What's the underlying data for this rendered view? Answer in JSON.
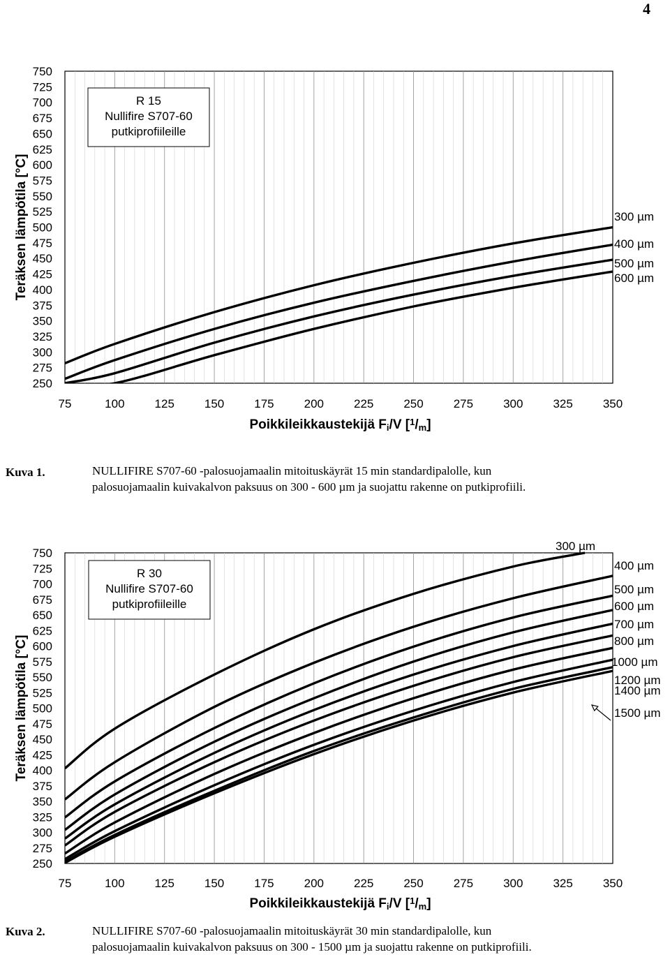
{
  "page_number": "4",
  "chart_data": [
    {
      "type": "line",
      "box_lines": [
        "R 15",
        "Nullifire S707-60",
        "putkiprofiileille"
      ],
      "ylabel": "Teräksen lämpötila [°C]",
      "xlabel_main": "Poikkileikkaustekijä F",
      "xlabel_sub": "i",
      "xlabel_mid": "/V [",
      "xlabel_sup": "1",
      "xlabel_slash": "/",
      "xlabel_sub2": "m",
      "xlabel_end": "]",
      "xlim": [
        75,
        350
      ],
      "ylim": [
        250,
        750
      ],
      "xticks": [
        "75",
        "100",
        "125",
        "150",
        "175",
        "200",
        "225",
        "250",
        "275",
        "300",
        "325",
        "350"
      ],
      "yticks": [
        "750",
        "725",
        "700",
        "675",
        "650",
        "625",
        "600",
        "575",
        "550",
        "525",
        "500",
        "475",
        "450",
        "425",
        "400",
        "375",
        "350",
        "325",
        "300",
        "275",
        "250"
      ],
      "series": [
        {
          "name": "300 µm",
          "x": [
            75,
            100,
            150,
            200,
            250,
            300,
            350
          ],
          "y": [
            282,
            313,
            364,
            407,
            443,
            474,
            500
          ]
        },
        {
          "name": "400 µm",
          "x": [
            75,
            100,
            150,
            200,
            250,
            300,
            350
          ],
          "y": [
            257,
            287,
            337,
            379,
            414,
            445,
            472
          ]
        },
        {
          "name": "500 µm",
          "x": [
            75,
            100,
            150,
            200,
            250,
            300,
            350
          ],
          "y": [
            250,
            266,
            315,
            357,
            392,
            422,
            448
          ]
        },
        {
          "name": "600 µm",
          "x": [
            75,
            100,
            150,
            200,
            250,
            300,
            350
          ],
          "y": [
            250,
            250,
            295,
            337,
            373,
            403,
            429
          ]
        }
      ]
    },
    {
      "type": "line",
      "box_lines": [
        "R 30",
        "Nullifire S707-60",
        "putkiprofiileille"
      ],
      "ylabel": "Teräksen lämpötila [°C]",
      "xlabel_main": "Poikkileikkaustekijä F",
      "xlabel_sub": "i",
      "xlabel_mid": "/V [",
      "xlabel_sup": "1",
      "xlabel_slash": "/",
      "xlabel_sub2": "m",
      "xlabel_end": "]",
      "xlim": [
        75,
        350
      ],
      "ylim": [
        250,
        750
      ],
      "xticks": [
        "75",
        "100",
        "125",
        "150",
        "175",
        "200",
        "225",
        "250",
        "275",
        "300",
        "325",
        "350"
      ],
      "yticks": [
        "750",
        "725",
        "700",
        "675",
        "650",
        "625",
        "600",
        "575",
        "550",
        "525",
        "500",
        "475",
        "450",
        "425",
        "400",
        "375",
        "350",
        "325",
        "300",
        "275",
        "250"
      ],
      "series": [
        {
          "name": "300 µm",
          "x": [
            75,
            100,
            150,
            200,
            250,
            300,
            336
          ],
          "y": [
            403,
            467,
            554,
            627,
            684,
            728,
            750
          ]
        },
        {
          "name": "400 µm",
          "x": [
            75,
            100,
            150,
            200,
            250,
            300,
            350
          ],
          "y": [
            353,
            413,
            502,
            573,
            631,
            677,
            713
          ]
        },
        {
          "name": "500 µm",
          "x": [
            75,
            100,
            150,
            200,
            250,
            300,
            350
          ],
          "y": [
            324,
            382,
            468,
            540,
            599,
            646,
            681
          ]
        },
        {
          "name": "600 µm",
          "x": [
            75,
            100,
            150,
            200,
            250,
            300,
            350
          ],
          "y": [
            304,
            361,
            446,
            516,
            575,
            622,
            658
          ]
        },
        {
          "name": "700 µm",
          "x": [
            75,
            100,
            150,
            200,
            250,
            300,
            350
          ],
          "y": [
            290,
            345,
            428,
            497,
            554,
            600,
            636
          ]
        },
        {
          "name": "800 µm",
          "x": [
            75,
            100,
            150,
            200,
            250,
            300,
            350
          ],
          "y": [
            279,
            333,
            413,
            480,
            536,
            582,
            617
          ]
        },
        {
          "name": "1000 µm",
          "x": [
            75,
            100,
            150,
            200,
            250,
            300,
            350
          ],
          "y": [
            266,
            316,
            394,
            460,
            516,
            562,
            597
          ]
        },
        {
          "name": "1200 µm",
          "x": [
            75,
            100,
            150,
            200,
            250,
            300,
            350
          ],
          "y": [
            257,
            302,
            376,
            441,
            496,
            542,
            578
          ]
        },
        {
          "name": "1400 µm",
          "x": [
            75,
            100,
            150,
            200,
            250,
            300,
            350
          ],
          "y": [
            253,
            296,
            367,
            431,
            485,
            531,
            566
          ]
        },
        {
          "name": "1500 µm",
          "x": [
            75,
            100,
            150,
            200,
            250,
            300,
            350
          ],
          "y": [
            251,
            293,
            363,
            426,
            480,
            525,
            560
          ]
        }
      ]
    }
  ],
  "captions": [
    {
      "label": "Kuva 1.",
      "line1": "NULLIFIRE S707-60 -palosuojamaalin mitoituskäyrät 15 min standardipalolle, kun",
      "line2": "palosuojamaalin kuivakalvon paksuus on 300 - 600 µm ja suojattu rakenne on putkiprofiili."
    },
    {
      "label": "Kuva 2.",
      "line1": "NULLIFIRE S707-60 -palosuojamaalin mitoituskäyrät 30 min standardipalolle, kun",
      "line2": "palosuojamaalin kuivakalvon paksuus on 300 - 1500 µm ja suojattu rakenne on putkiprofiili."
    }
  ]
}
